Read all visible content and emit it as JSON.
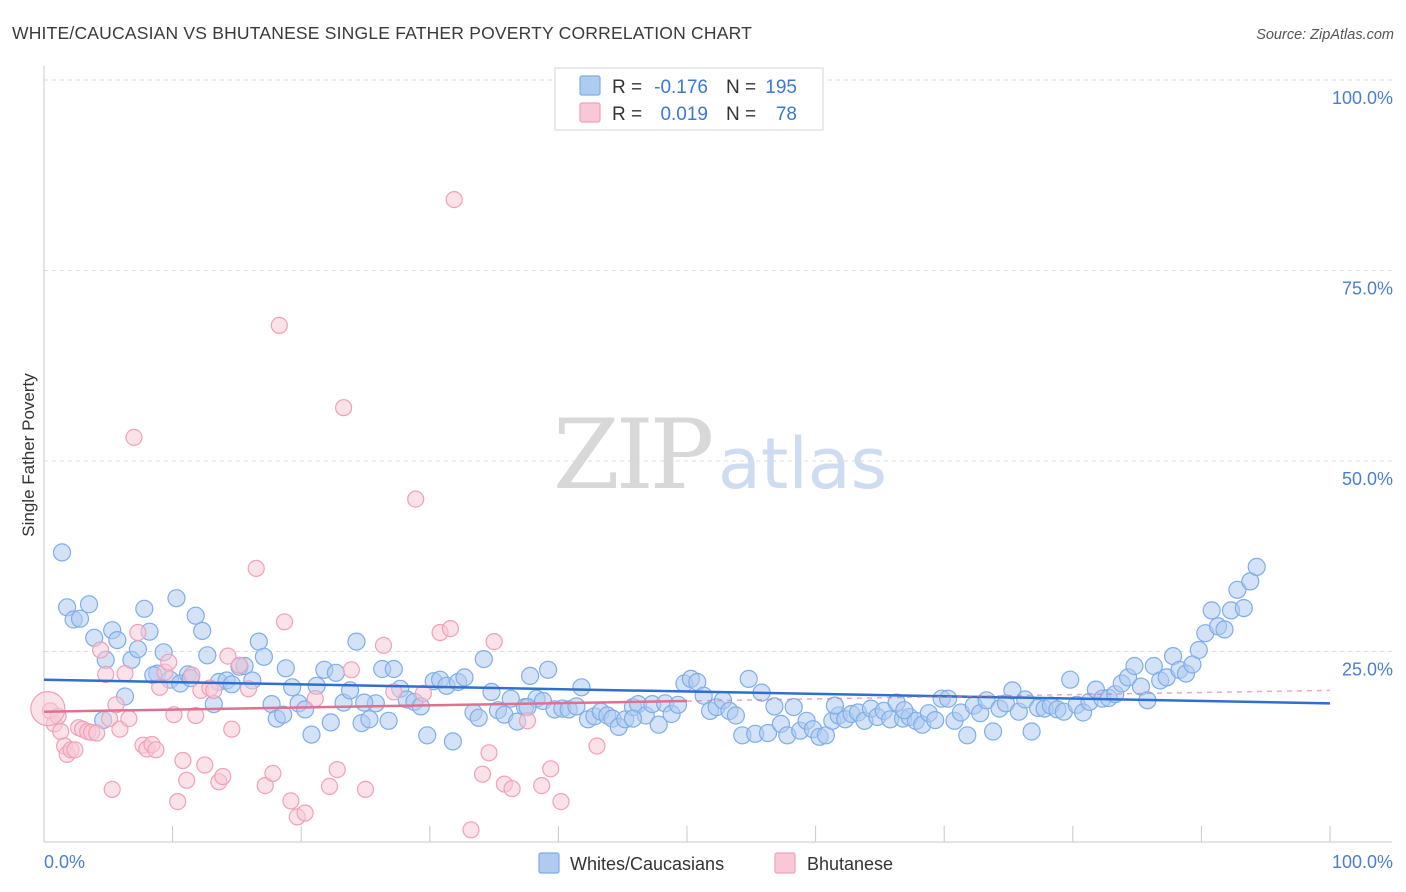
{
  "chart_data": {
    "type": "scatter",
    "title": "WHITE/CAUCASIAN VS BHUTANESE SINGLE FATHER POVERTY CORRELATION CHART",
    "source": "Source: ZipAtlas.com",
    "ylabel": "Single Father Poverty",
    "xlabel": "",
    "xlim": [
      0,
      100
    ],
    "ylim": [
      0,
      100
    ],
    "x_tick_labels": [
      "0.0%",
      "100.0%"
    ],
    "y_tick_values": [
      25,
      50,
      75,
      100
    ],
    "y_tick_labels": [
      "25.0%",
      "50.0%",
      "75.0%",
      "100.0%"
    ],
    "watermark": {
      "part1": "ZIP",
      "part2": "atlas"
    },
    "legend": {
      "placement": "top-center",
      "rows": [
        {
          "r_label": "R =",
          "r_value": "-0.176",
          "n_label": "N =",
          "n_value": "195"
        },
        {
          "r_label": "R =",
          "r_value": "0.019",
          "n_label": "N =",
          "n_value": "78"
        }
      ]
    },
    "series": [
      {
        "name": "Whites/Caucasians",
        "color": "#7eaee8",
        "fill": "#aecbf0",
        "line_color": "#2f6fd0",
        "trend": {
          "x0": 0,
          "y0": 21.3,
          "x1": 100,
          "y1": 18.2
        },
        "points": [
          [
            1.4,
            38
          ],
          [
            1.8,
            30.8
          ],
          [
            2.3,
            29.2
          ],
          [
            2.8,
            29.3
          ],
          [
            3.5,
            31.2
          ],
          [
            3.9,
            26.8
          ],
          [
            4.6,
            16
          ],
          [
            4.8,
            23.9
          ],
          [
            5.3,
            27.8
          ],
          [
            5.7,
            26.5
          ],
          [
            6.3,
            19.1
          ],
          [
            6.8,
            23.9
          ],
          [
            7.3,
            25.3
          ],
          [
            7.8,
            30.6
          ],
          [
            8.2,
            27.6
          ],
          [
            8.8,
            22.1
          ],
          [
            9.3,
            24.9
          ],
          [
            9.8,
            21.3
          ],
          [
            10.3,
            32
          ],
          [
            10.6,
            20.8
          ],
          [
            11.2,
            22
          ],
          [
            11.8,
            29.7
          ],
          [
            12.3,
            27.7
          ],
          [
            12.7,
            24.5
          ],
          [
            13.2,
            18.1
          ],
          [
            13.6,
            21
          ],
          [
            14.2,
            21.2
          ],
          [
            14.6,
            20.7
          ],
          [
            15.2,
            23
          ],
          [
            15.6,
            23.1
          ],
          [
            16.2,
            21.2
          ],
          [
            16.7,
            26.3
          ],
          [
            17.1,
            24.3
          ],
          [
            17.7,
            18.1
          ],
          [
            18.1,
            16.2
          ],
          [
            18.8,
            22.8
          ],
          [
            19.3,
            20.3
          ],
          [
            19.8,
            18.2
          ],
          [
            20.3,
            17.4
          ],
          [
            20.8,
            14.1
          ],
          [
            21.2,
            20.5
          ],
          [
            21.8,
            22.6
          ],
          [
            22.3,
            15.7
          ],
          [
            22.7,
            22.2
          ],
          [
            23.3,
            18.3
          ],
          [
            23.8,
            19.9
          ],
          [
            24.3,
            26.3
          ],
          [
            24.7,
            15.6
          ],
          [
            25.3,
            16.1
          ],
          [
            25.8,
            18.2
          ],
          [
            26.3,
            22.7
          ],
          [
            26.8,
            15.9
          ],
          [
            27.2,
            22.7
          ],
          [
            27.7,
            20.1
          ],
          [
            28.2,
            18.7
          ],
          [
            28.8,
            18.4
          ],
          [
            29.3,
            17.8
          ],
          [
            29.8,
            14
          ],
          [
            30.3,
            21.1
          ],
          [
            30.8,
            21.3
          ],
          [
            31.3,
            20.5
          ],
          [
            31.8,
            13.2
          ],
          [
            32.2,
            21
          ],
          [
            32.7,
            21.6
          ],
          [
            33.4,
            17
          ],
          [
            33.8,
            16.3
          ],
          [
            34.2,
            24
          ],
          [
            34.8,
            19.7
          ],
          [
            35.3,
            17.3
          ],
          [
            35.8,
            16.7
          ],
          [
            36.3,
            18.8
          ],
          [
            36.8,
            15.8
          ],
          [
            37.4,
            17.7
          ],
          [
            37.8,
            21.8
          ],
          [
            38.3,
            18.8
          ],
          [
            38.8,
            18.5
          ],
          [
            39.2,
            22.6
          ],
          [
            39.7,
            17.4
          ],
          [
            40.3,
            17.5
          ],
          [
            40.8,
            17.4
          ],
          [
            41.4,
            17.8
          ],
          [
            41.8,
            20.3
          ],
          [
            42.3,
            16.1
          ],
          [
            42.8,
            16.5
          ],
          [
            43.3,
            17.1
          ],
          [
            43.8,
            16.6
          ],
          [
            44.2,
            16.2
          ],
          [
            44.7,
            15.1
          ],
          [
            45.2,
            16.1
          ],
          [
            45.8,
            17.7
          ],
          [
            46.2,
            18.1
          ],
          [
            46.8,
            16.6
          ],
          [
            47.3,
            18.1
          ],
          [
            47.8,
            15.4
          ],
          [
            48.3,
            18.2
          ],
          [
            48.8,
            16.8
          ],
          [
            49.3,
            18
          ],
          [
            49.8,
            20.8
          ],
          [
            50.3,
            21.4
          ],
          [
            50.8,
            21
          ],
          [
            51.3,
            19.2
          ],
          [
            51.8,
            17.2
          ],
          [
            52.3,
            17.7
          ],
          [
            52.8,
            18.6
          ],
          [
            53.3,
            17.2
          ],
          [
            53.8,
            16.6
          ],
          [
            54.3,
            14
          ],
          [
            54.8,
            21.4
          ],
          [
            55.3,
            14.2
          ],
          [
            55.8,
            19.6
          ],
          [
            56.3,
            14.3
          ],
          [
            56.8,
            17.8
          ],
          [
            57.3,
            15.5
          ],
          [
            57.8,
            14
          ],
          [
            58.3,
            17.7
          ],
          [
            58.8,
            14.6
          ],
          [
            59.3,
            15.9
          ],
          [
            59.8,
            14.8
          ],
          [
            60.3,
            13.8
          ],
          [
            60.8,
            14
          ],
          [
            61.3,
            15.9
          ],
          [
            61.8,
            16.6
          ],
          [
            62.3,
            16.1
          ],
          [
            62.8,
            16.8
          ],
          [
            63.3,
            17
          ],
          [
            63.8,
            15.9
          ],
          [
            64.3,
            17.5
          ],
          [
            64.8,
            16.4
          ],
          [
            65.3,
            17.2
          ],
          [
            65.8,
            16.1
          ],
          [
            66.3,
            18.3
          ],
          [
            66.8,
            16.2
          ],
          [
            67.3,
            16.4
          ],
          [
            67.8,
            15.9
          ],
          [
            68.3,
            15.4
          ],
          [
            68.8,
            16.9
          ],
          [
            69.3,
            16
          ],
          [
            69.8,
            18.8
          ],
          [
            70.3,
            18.8
          ],
          [
            70.8,
            15.9
          ],
          [
            71.3,
            17
          ],
          [
            71.8,
            14
          ],
          [
            72.3,
            17.9
          ],
          [
            72.8,
            16.9
          ],
          [
            73.3,
            18.6
          ],
          [
            73.8,
            14.5
          ],
          [
            74.3,
            17.5
          ],
          [
            74.8,
            18.2
          ],
          [
            75.3,
            19.9
          ],
          [
            75.8,
            17.1
          ],
          [
            76.3,
            18.7
          ],
          [
            76.8,
            14.5
          ],
          [
            77.3,
            17.6
          ],
          [
            77.8,
            17.5
          ],
          [
            78.3,
            17.9
          ],
          [
            78.8,
            17.4
          ],
          [
            79.3,
            17.1
          ],
          [
            79.8,
            21.3
          ],
          [
            80.3,
            18
          ],
          [
            80.8,
            17
          ],
          [
            81.3,
            18.4
          ],
          [
            81.8,
            20
          ],
          [
            82.3,
            18.8
          ],
          [
            82.8,
            18.9
          ],
          [
            83.3,
            19.4
          ],
          [
            83.8,
            20.8
          ],
          [
            84.3,
            21.6
          ],
          [
            84.8,
            23.1
          ],
          [
            85.3,
            20.4
          ],
          [
            85.8,
            18.6
          ],
          [
            86.3,
            23.1
          ],
          [
            86.8,
            21.2
          ],
          [
            87.3,
            21.6
          ],
          [
            87.8,
            24.4
          ],
          [
            88.3,
            22.6
          ],
          [
            88.8,
            22.1
          ],
          [
            89.3,
            23.3
          ],
          [
            89.8,
            25.2
          ],
          [
            90.3,
            27.4
          ],
          [
            90.8,
            30.4
          ],
          [
            91.3,
            28.3
          ],
          [
            91.8,
            27.9
          ],
          [
            92.3,
            30.4
          ],
          [
            92.8,
            33.1
          ],
          [
            93.3,
            30.7
          ],
          [
            93.8,
            34.2
          ],
          [
            94.3,
            36.1
          ],
          [
            45.8,
            16.2
          ],
          [
            37.6,
            17.7
          ],
          [
            24.9,
            18.3
          ],
          [
            18.6,
            16.7
          ],
          [
            11.4,
            21.5
          ],
          [
            8.5,
            21.9
          ],
          [
            61.5,
            17.9
          ],
          [
            66.9,
            17.3
          ]
        ]
      },
      {
        "name": "Bhutanese",
        "color": "#f0a0b8",
        "fill": "#f8c8d6",
        "line_color": "#e07090",
        "trend": {
          "x0": 0,
          "y0": 17.1,
          "x1": 50,
          "y1": 18.5
        },
        "points": [
          [
            0.5,
            17.2
          ],
          [
            0.8,
            15.5
          ],
          [
            1.1,
            16.5
          ],
          [
            1.3,
            14.5
          ],
          [
            1.6,
            12.6
          ],
          [
            1.8,
            11.5
          ],
          [
            2.1,
            12.1
          ],
          [
            2.4,
            12.1
          ],
          [
            2.7,
            15
          ],
          [
            3,
            14.8
          ],
          [
            3.4,
            14.5
          ],
          [
            3.7,
            14.4
          ],
          [
            4.1,
            14.3
          ],
          [
            4.4,
            25.2
          ],
          [
            4.8,
            22
          ],
          [
            5.1,
            16.2
          ],
          [
            5.3,
            6.9
          ],
          [
            5.6,
            18
          ],
          [
            5.9,
            14.8
          ],
          [
            6.3,
            22.1
          ],
          [
            6.6,
            16.2
          ],
          [
            7,
            53.1
          ],
          [
            7.3,
            27.5
          ],
          [
            7.7,
            12.7
          ],
          [
            8,
            12.2
          ],
          [
            8.4,
            12.8
          ],
          [
            8.7,
            12.1
          ],
          [
            9,
            20.3
          ],
          [
            9.4,
            22.3
          ],
          [
            9.7,
            23.6
          ],
          [
            10.1,
            16.7
          ],
          [
            10.4,
            5.3
          ],
          [
            10.8,
            10.7
          ],
          [
            11.1,
            8.1
          ],
          [
            11.5,
            21.9
          ],
          [
            11.8,
            16.6
          ],
          [
            12.2,
            19.9
          ],
          [
            12.5,
            10.1
          ],
          [
            12.9,
            20.2
          ],
          [
            13.2,
            19.9
          ],
          [
            13.6,
            7.9
          ],
          [
            13.9,
            8.6
          ],
          [
            14.3,
            24.4
          ],
          [
            14.6,
            14.8
          ],
          [
            15.2,
            23.2
          ],
          [
            15.9,
            20.1
          ],
          [
            16.5,
            35.9
          ],
          [
            17.2,
            7.4
          ],
          [
            17.8,
            9
          ],
          [
            18.3,
            67.8
          ],
          [
            18.7,
            28.9
          ],
          [
            19.2,
            5.4
          ],
          [
            19.7,
            3.3
          ],
          [
            20.3,
            3.8
          ],
          [
            21.1,
            18.8
          ],
          [
            22.2,
            7.3
          ],
          [
            22.8,
            9.5
          ],
          [
            23.3,
            57
          ],
          [
            23.9,
            22.6
          ],
          [
            25,
            6.9
          ],
          [
            26.4,
            25.8
          ],
          [
            27.2,
            19.7
          ],
          [
            28.9,
            45
          ],
          [
            29.5,
            19.5
          ],
          [
            30.8,
            27.5
          ],
          [
            31.6,
            28
          ],
          [
            31.9,
            84.3
          ],
          [
            33.2,
            1.6
          ],
          [
            34.1,
            8.9
          ],
          [
            34.6,
            11.7
          ],
          [
            35,
            26.3
          ],
          [
            35.8,
            7.6
          ],
          [
            36.4,
            7
          ],
          [
            37.6,
            15.9
          ],
          [
            38.7,
            7.4
          ],
          [
            39.4,
            9.6
          ],
          [
            40.2,
            5.3
          ],
          [
            43,
            12.6
          ]
        ]
      }
    ]
  }
}
